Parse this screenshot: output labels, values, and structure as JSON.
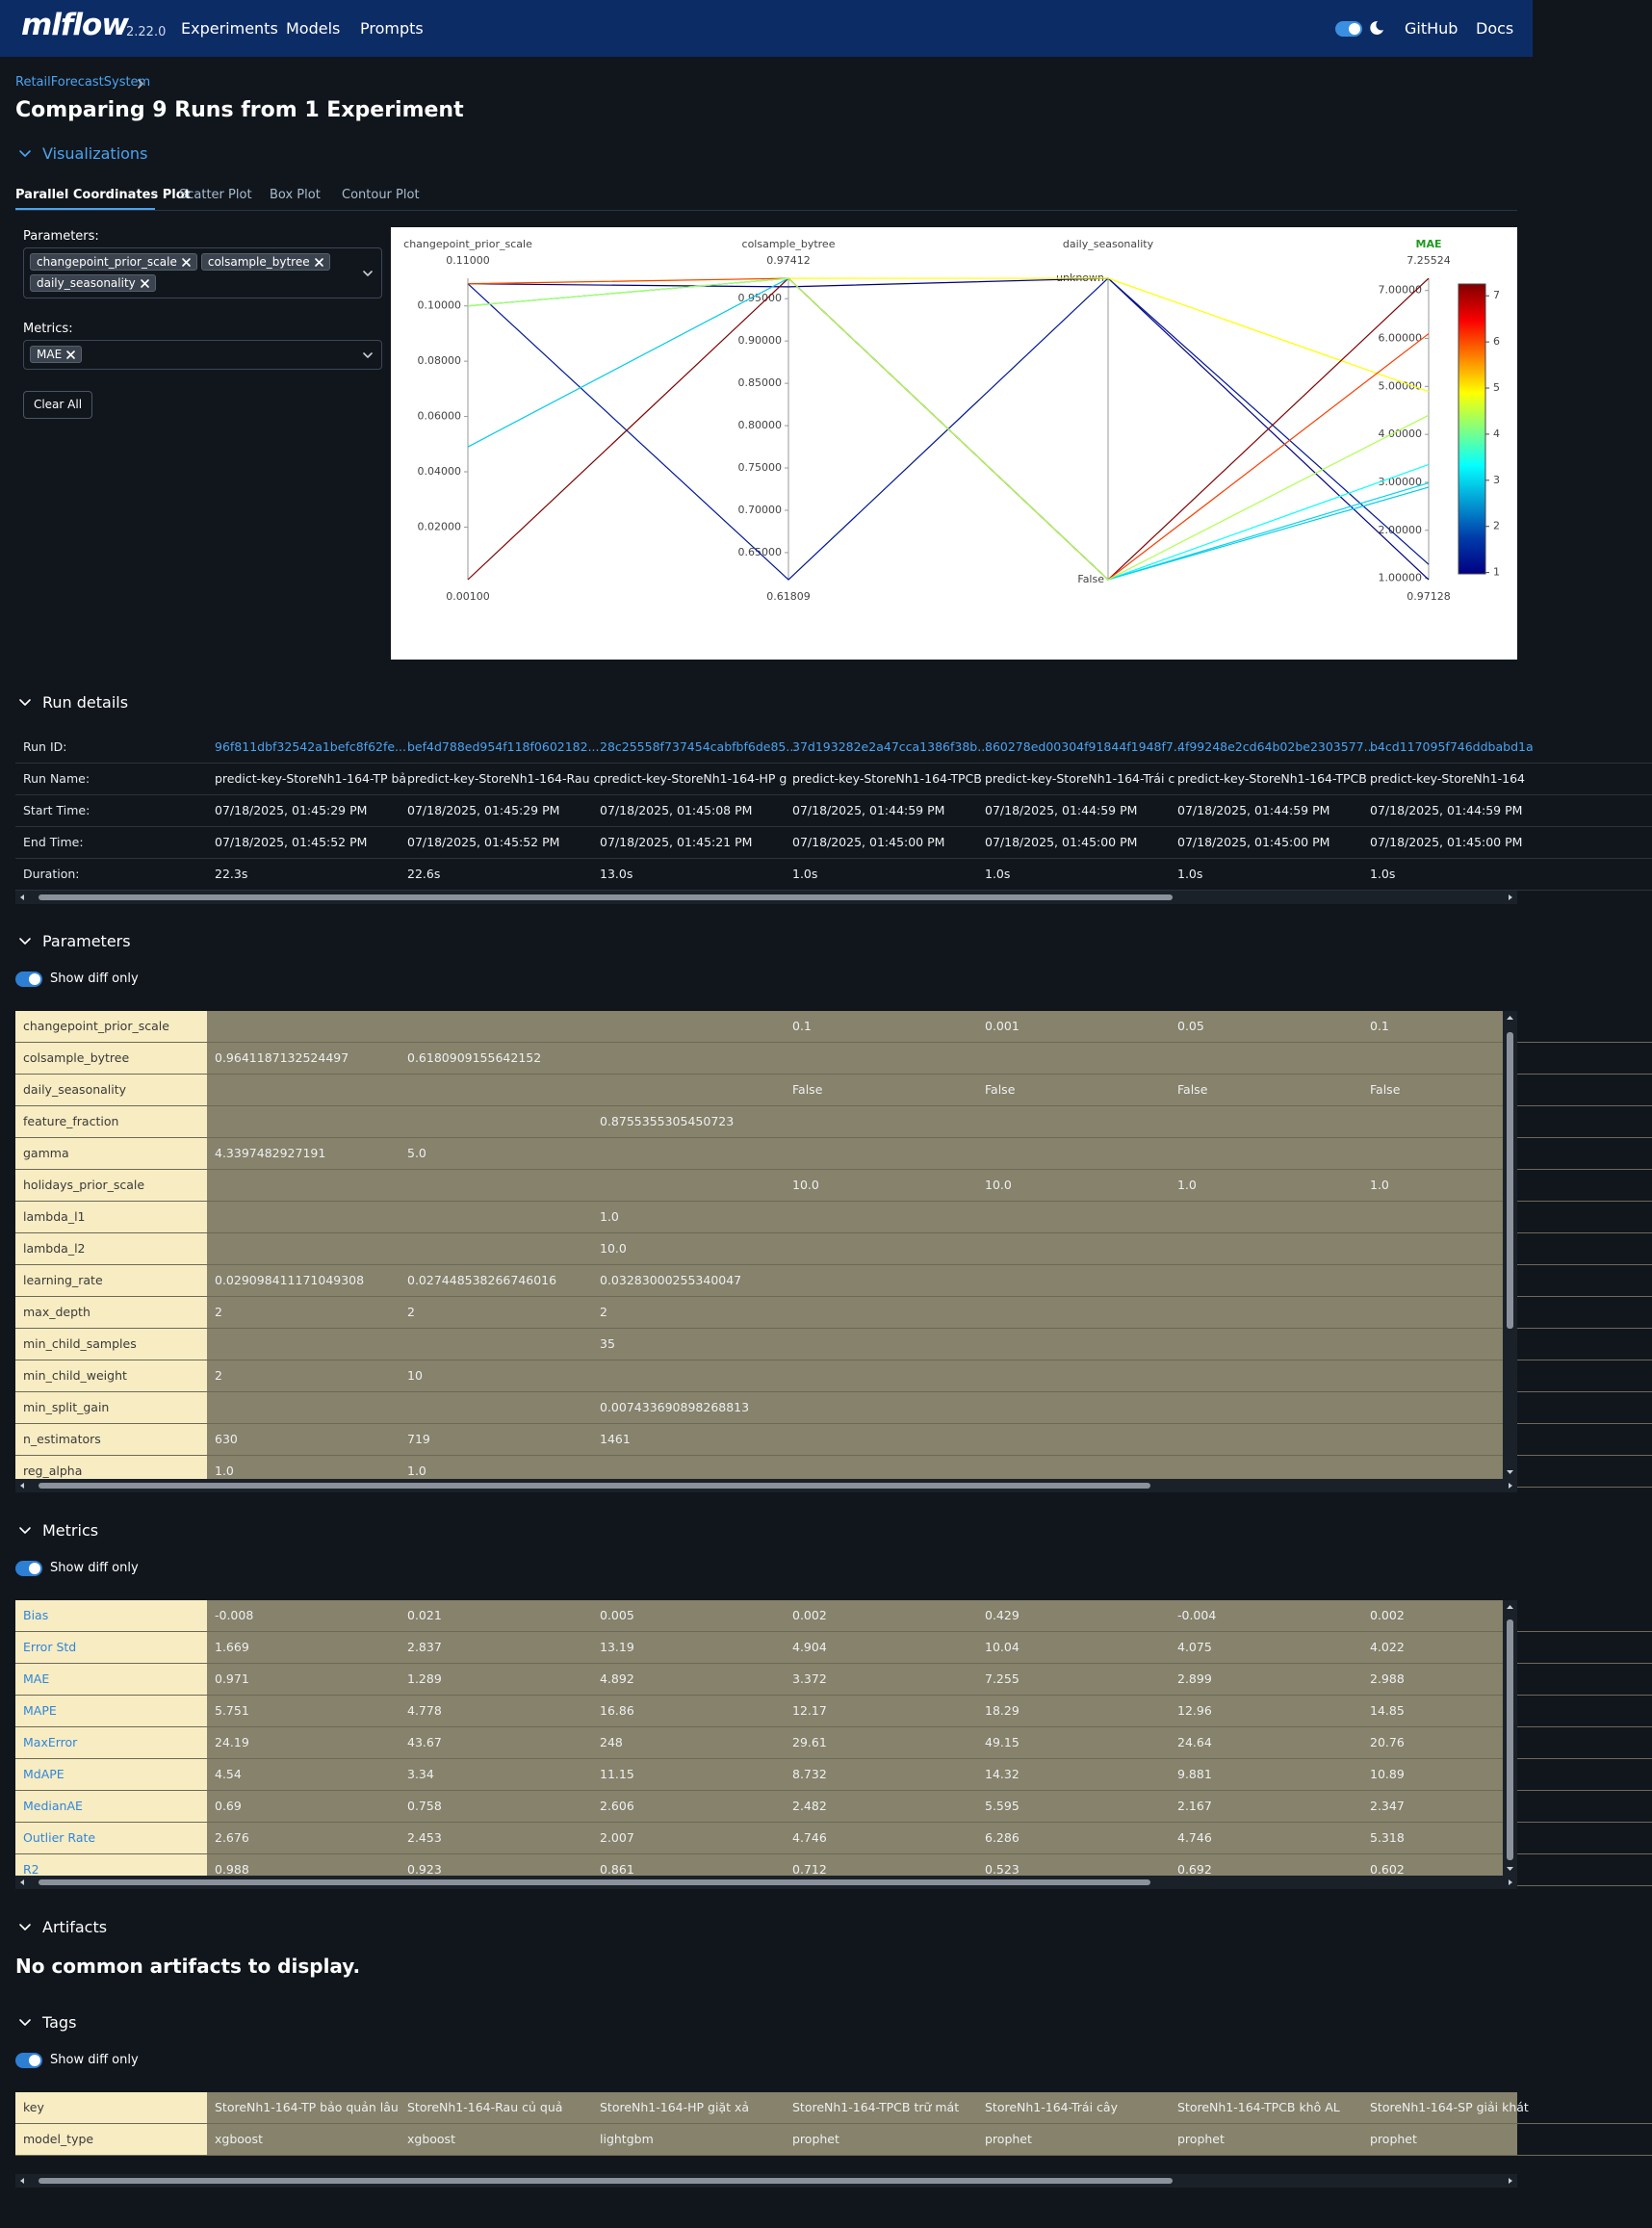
{
  "header": {
    "logo": "mlflow",
    "version": "2.22.0",
    "nav": [
      "Experiments",
      "Models",
      "Prompts"
    ],
    "links": [
      "GitHub",
      "Docs"
    ]
  },
  "breadcrumb": "RetailForecastSystem",
  "title": "Comparing 9 Runs from 1 Experiment",
  "visualizations": {
    "heading": "Visualizations",
    "tabs": [
      "Parallel Coordinates Plot",
      "Scatter Plot",
      "Box Plot",
      "Contour Plot"
    ],
    "active_tab": 0,
    "parameters_label": "Parameters:",
    "parameters": [
      "changepoint_prior_scale",
      "colsample_bytree",
      "daily_seasonality"
    ],
    "metrics_label": "Metrics:",
    "metrics": [
      "MAE"
    ],
    "clear": "Clear All",
    "plot": {
      "axes": [
        {
          "title": "changepoint_prior_scale",
          "range": [
            {
              "value": 0.001,
              "label": "0.00100"
            },
            {
              "value": 0.11,
              "label": "0.11000"
            }
          ],
          "ticks": [
            {
              "value": 0.02,
              "label": "0.02000"
            },
            {
              "value": 0.04,
              "label": "0.04000"
            },
            {
              "value": 0.06,
              "label": "0.06000"
            },
            {
              "value": 0.08,
              "label": "0.08000"
            },
            {
              "value": 0.1,
              "label": "0.10000"
            }
          ]
        },
        {
          "title": "colsample_bytree",
          "range": [
            0.61809,
            0.97412
          ],
          "ticks": [
            {
              "value": 0.65,
              "label": "0.65000"
            },
            {
              "value": 0.7,
              "label": "0.70000"
            },
            {
              "value": 0.75,
              "label": "0.75000"
            },
            {
              "value": 0.8,
              "label": "0.80000"
            },
            {
              "value": 0.85,
              "label": "0.85000"
            },
            {
              "value": 0.9,
              "label": "0.90000"
            },
            {
              "value": 0.95,
              "label": "0.95000"
            }
          ]
        },
        {
          "title": "daily_seasonality",
          "categories": [
            "unknown",
            "False"
          ]
        },
        {
          "title": "MAE",
          "title_color": "#1f9a1f",
          "range": [
            0.97128,
            7.25524
          ],
          "ticks": [
            {
              "value": 1,
              "label": "1.00000"
            },
            {
              "value": 2,
              "label": "2.00000"
            },
            {
              "value": 3,
              "label": "3.00000"
            },
            {
              "value": 4,
              "label": "4.00000"
            },
            {
              "value": 5,
              "label": "5.00000"
            },
            {
              "value": 6,
              "label": "6.00000"
            },
            {
              "value": 7,
              "label": "7.00000"
            }
          ]
        }
      ],
      "lines": [
        [
          0.108,
          0.964,
          "unknown",
          0.971
        ],
        [
          0.108,
          0.618,
          "unknown",
          1.289
        ],
        [
          0.108,
          0.974,
          "unknown",
          4.892
        ],
        [
          0.1,
          0.974,
          "False",
          3.372
        ],
        [
          0.001,
          0.974,
          "False",
          7.255
        ],
        [
          0.049,
          0.974,
          "False",
          2.899
        ],
        [
          0.1,
          0.974,
          "False",
          2.988
        ],
        [
          0.108,
          0.974,
          "False",
          6.1
        ],
        [
          0.1,
          0.974,
          "False",
          4.4
        ]
      ],
      "color_axis": 3,
      "colorscale": {
        "stops": [
          0,
          0.125,
          0.375,
          0.625,
          0.875,
          1
        ],
        "colors": [
          "#000083",
          "#003caa",
          "#05ffff",
          "#ffff00",
          "#fa0000",
          "#800000"
        ]
      },
      "colorbar": {
        "ticks": [
          1,
          2,
          3,
          4,
          5,
          6,
          7
        ]
      }
    }
  },
  "run_details": {
    "heading": "Run details",
    "rows": [
      {
        "label": "Run ID:",
        "values": [
          "96f811dbf32542a1befc8f62fe...",
          "bef4d788ed954f118f0602182...",
          "28c25558f737454cabfbf6de85...",
          "37d193282e2a47cca1386f38b...",
          "860278ed00304f91844f1948f7...",
          "4f99248e2cd64b02be2303577...",
          "b4cd117095f746ddbabd1a"
        ]
      },
      {
        "label": "Run Name:",
        "values": [
          "predict-key-StoreNh1-164-TP bả",
          "predict-key-StoreNh1-164-Rau c",
          "predict-key-StoreNh1-164-HP g",
          "predict-key-StoreNh1-164-TPCB",
          "predict-key-StoreNh1-164-Trái c",
          "predict-key-StoreNh1-164-TPCB",
          "predict-key-StoreNh1-164"
        ]
      },
      {
        "label": "Start Time:",
        "values": [
          "07/18/2025, 01:45:29 PM",
          "07/18/2025, 01:45:29 PM",
          "07/18/2025, 01:45:08 PM",
          "07/18/2025, 01:44:59 PM",
          "07/18/2025, 01:44:59 PM",
          "07/18/2025, 01:44:59 PM",
          "07/18/2025, 01:44:59 PM"
        ]
      },
      {
        "label": "End Time:",
        "values": [
          "07/18/2025, 01:45:52 PM",
          "07/18/2025, 01:45:52 PM",
          "07/18/2025, 01:45:21 PM",
          "07/18/2025, 01:45:00 PM",
          "07/18/2025, 01:45:00 PM",
          "07/18/2025, 01:45:00 PM",
          "07/18/2025, 01:45:00 PM"
        ]
      },
      {
        "label": "Duration:",
        "values": [
          "22.3s",
          "22.6s",
          "13.0s",
          "1.0s",
          "1.0s",
          "1.0s",
          "1.0s"
        ]
      }
    ]
  },
  "parameters": {
    "heading": "Parameters",
    "diff_toggle": "Show diff only",
    "rows": [
      {
        "label": "changepoint_prior_scale",
        "values": [
          null,
          null,
          null,
          "0.1",
          "0.001",
          "0.05",
          "0.1"
        ]
      },
      {
        "label": "colsample_bytree",
        "values": [
          "0.9641187132524497",
          "0.6180909155642152",
          null,
          null,
          null,
          null,
          null
        ]
      },
      {
        "label": "daily_seasonality",
        "values": [
          null,
          null,
          null,
          "False",
          "False",
          "False",
          "False"
        ]
      },
      {
        "label": "feature_fraction",
        "values": [
          null,
          null,
          "0.8755355305450723",
          null,
          null,
          null,
          null
        ]
      },
      {
        "label": "gamma",
        "values": [
          "4.3397482927191",
          "5.0",
          null,
          null,
          null,
          null,
          null
        ]
      },
      {
        "label": "holidays_prior_scale",
        "values": [
          null,
          null,
          null,
          "10.0",
          "10.0",
          "1.0",
          "1.0"
        ]
      },
      {
        "label": "lambda_l1",
        "values": [
          null,
          null,
          "1.0",
          null,
          null,
          null,
          null
        ]
      },
      {
        "label": "lambda_l2",
        "values": [
          null,
          null,
          "10.0",
          null,
          null,
          null,
          null
        ]
      },
      {
        "label": "learning_rate",
        "values": [
          "0.029098411171049308",
          "0.027448538266746016",
          "0.03283000255340047",
          null,
          null,
          null,
          null
        ]
      },
      {
        "label": "max_depth",
        "values": [
          "2",
          "2",
          "2",
          null,
          null,
          null,
          null
        ]
      },
      {
        "label": "min_child_samples",
        "values": [
          null,
          null,
          "35",
          null,
          null,
          null,
          null
        ]
      },
      {
        "label": "min_child_weight",
        "values": [
          "2",
          "10",
          null,
          null,
          null,
          null,
          null
        ]
      },
      {
        "label": "min_split_gain",
        "values": [
          null,
          null,
          "0.007433690898268813",
          null,
          null,
          null,
          null
        ]
      },
      {
        "label": "n_estimators",
        "values": [
          "630",
          "719",
          "1461",
          null,
          null,
          null,
          null
        ]
      },
      {
        "label": "reg_alpha",
        "values": [
          "1.0",
          "1.0",
          null,
          null,
          null,
          null,
          null
        ]
      }
    ]
  },
  "metrics": {
    "heading": "Metrics",
    "diff_toggle": "Show diff only",
    "rows": [
      {
        "label": "Bias",
        "values": [
          -0.008,
          0.021,
          0.005,
          0.002,
          0.429,
          -0.004,
          0.002
        ]
      },
      {
        "label": "Error Std",
        "values": [
          1.669,
          2.837,
          13.19,
          4.904,
          10.04,
          4.075,
          4.022
        ]
      },
      {
        "label": "MAE",
        "values": [
          0.971,
          1.289,
          4.892,
          3.372,
          7.255,
          2.899,
          2.988
        ]
      },
      {
        "label": "MAPE",
        "values": [
          5.751,
          4.778,
          16.86,
          12.17,
          18.29,
          12.96,
          14.85
        ]
      },
      {
        "label": "MaxError",
        "values": [
          24.19,
          43.67,
          248,
          29.61,
          49.15,
          24.64,
          20.76
        ]
      },
      {
        "label": "MdAPE",
        "values": [
          4.54,
          3.34,
          11.15,
          8.732,
          14.32,
          9.881,
          10.89
        ]
      },
      {
        "label": "MedianAE",
        "values": [
          0.69,
          0.758,
          2.606,
          2.482,
          5.595,
          2.167,
          2.347
        ]
      },
      {
        "label": "Outlier Rate",
        "values": [
          2.676,
          2.453,
          2.007,
          4.746,
          6.286,
          4.746,
          5.318
        ]
      },
      {
        "label": "R2",
        "values": [
          0.988,
          0.923,
          0.861,
          0.712,
          0.523,
          0.692,
          0.602
        ]
      }
    ]
  },
  "artifacts": {
    "heading": "Artifacts",
    "message": "No common artifacts to display."
  },
  "tags": {
    "heading": "Tags",
    "diff_toggle": "Show diff only",
    "rows": [
      {
        "label": "key",
        "values": [
          "StoreNh1-164-TP bảo quản lâu",
          "StoreNh1-164-Rau củ quả",
          "StoreNh1-164-HP giặt xả",
          "StoreNh1-164-TPCB trữ mát",
          "StoreNh1-164-Trái cây",
          "StoreNh1-164-TPCB khô AL",
          "StoreNh1-164-SP giải khát"
        ]
      },
      {
        "label": "model_type",
        "values": [
          "xgboost",
          "xgboost",
          "lightgbm",
          "prophet",
          "prophet",
          "prophet",
          "prophet"
        ]
      }
    ]
  }
}
